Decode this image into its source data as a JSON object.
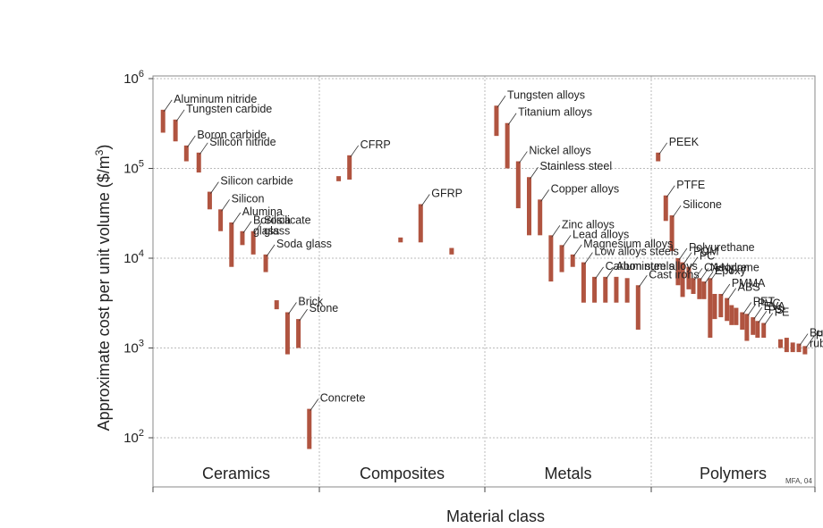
{
  "chart_data": {
    "type": "bar",
    "xlabel": "Material class",
    "ylabel_main": "Approximate cost per unit volume ($/m",
    "ylabel_sup": "3",
    "ylabel_tail": ")",
    "yscale": "log",
    "ylim": [
      50,
      1000000
    ],
    "y_ticks": [
      {
        "value": 100,
        "base": "10",
        "exp": "2"
      },
      {
        "value": 1000,
        "base": "10",
        "exp": "3"
      },
      {
        "value": 10000,
        "base": "10",
        "exp": "4"
      },
      {
        "value": 100000,
        "base": "10",
        "exp": "5"
      },
      {
        "value": 1000000,
        "base": "10",
        "exp": "6"
      }
    ],
    "grid": true,
    "bar_color": "#b05440",
    "credit": "MFA, 04",
    "categories": [
      "Ceramics",
      "Composites",
      "Metals",
      "Polymers"
    ],
    "materials": [
      {
        "label": [
          "Aluminum nitride"
        ],
        "cat": 0,
        "pos": 0.03,
        "low": 250000,
        "high": 450000
      },
      {
        "label": [
          "Tungsten carbide"
        ],
        "cat": 0,
        "pos": 0.11,
        "low": 200000,
        "high": 350000
      },
      {
        "label": [
          "Boron carbide"
        ],
        "cat": 0,
        "pos": 0.18,
        "low": 120000,
        "high": 180000
      },
      {
        "label": [
          "Silicon nitride"
        ],
        "cat": 0,
        "pos": 0.26,
        "low": 90000,
        "high": 150000
      },
      {
        "label": [
          "Silicon carbide"
        ],
        "cat": 0,
        "pos": 0.33,
        "low": 35000,
        "high": 55000
      },
      {
        "label": [
          "Silicon"
        ],
        "cat": 0,
        "pos": 0.4,
        "low": 20000,
        "high": 35000
      },
      {
        "label": [
          "Alumina"
        ],
        "cat": 0,
        "pos": 0.47,
        "low": 8000,
        "high": 25000
      },
      {
        "label": [
          "Borosilicate",
          "glass"
        ],
        "cat": 0,
        "pos": 0.54,
        "low": 14000,
        "high": 20000
      },
      {
        "label": [
          "Silica",
          "glass"
        ],
        "cat": 0,
        "pos": 0.61,
        "low": 11000,
        "high": 20000
      },
      {
        "label": [
          "Soda glass"
        ],
        "cat": 0,
        "pos": 0.69,
        "low": 7000,
        "high": 11000
      },
      {
        "label": [
          ""
        ],
        "cat": 0,
        "pos": 0.76,
        "low": 2700,
        "high": 3400
      },
      {
        "label": [
          "Brick"
        ],
        "cat": 0,
        "pos": 0.83,
        "low": 850,
        "high": 2500
      },
      {
        "label": [
          "Stone"
        ],
        "cat": 0,
        "pos": 0.9,
        "low": 1000,
        "high": 2100
      },
      {
        "label": [
          "Concrete"
        ],
        "cat": 0,
        "pos": 0.97,
        "low": 75,
        "high": 210
      },
      {
        "label": [
          "CFRP"
        ],
        "cat": 1,
        "pos": 0.16,
        "low": 75000,
        "high": 140000
      },
      {
        "label": [
          ""
        ],
        "cat": 1,
        "pos": 0.09,
        "low": 72000,
        "high": 82000
      },
      {
        "label": [
          "GFRP"
        ],
        "cat": 1,
        "pos": 0.62,
        "low": 15000,
        "high": 40000
      },
      {
        "label": [
          ""
        ],
        "cat": 1,
        "pos": 0.49,
        "low": 15000,
        "high": 17000
      },
      {
        "label": [
          ""
        ],
        "cat": 1,
        "pos": 0.82,
        "low": 11000,
        "high": 13000
      },
      {
        "label": [
          "Tungsten alloys"
        ],
        "cat": 2,
        "pos": 0.04,
        "low": 230000,
        "high": 500000
      },
      {
        "label": [
          "Titanium alloys"
        ],
        "cat": 2,
        "pos": 0.11,
        "low": 100000,
        "high": 320000
      },
      {
        "label": [
          "Nickel alloys"
        ],
        "cat": 2,
        "pos": 0.18,
        "low": 36000,
        "high": 120000
      },
      {
        "label": [
          "Stainless steel"
        ],
        "cat": 2,
        "pos": 0.25,
        "low": 18000,
        "high": 80000
      },
      {
        "label": [
          "Copper alloys"
        ],
        "cat": 2,
        "pos": 0.32,
        "low": 18000,
        "high": 45000
      },
      {
        "label": [
          "Zinc alloys"
        ],
        "cat": 2,
        "pos": 0.39,
        "low": 5500,
        "high": 18000
      },
      {
        "label": [
          "Lead alloys"
        ],
        "cat": 2,
        "pos": 0.46,
        "low": 7000,
        "high": 14000
      },
      {
        "label": [
          "Magnesium alloys"
        ],
        "cat": 2,
        "pos": 0.53,
        "low": 8000,
        "high": 11000
      },
      {
        "label": [
          "Low alloys steels"
        ],
        "cat": 2,
        "pos": 0.6,
        "low": 3200,
        "high": 9000
      },
      {
        "label": [
          "Carbon steels"
        ],
        "cat": 2,
        "pos": 0.67,
        "low": 3200,
        "high": 6200
      },
      {
        "label": [
          "Aluminum alloys"
        ],
        "cat": 2,
        "pos": 0.74,
        "low": 3200,
        "high": 6200
      },
      {
        "label": [
          ""
        ],
        "cat": 2,
        "pos": 0.81,
        "low": 3200,
        "high": 6200
      },
      {
        "label": [
          ""
        ],
        "cat": 2,
        "pos": 0.88,
        "low": 3200,
        "high": 6000
      },
      {
        "label": [
          "Cast irons"
        ],
        "cat": 2,
        "pos": 0.95,
        "low": 1600,
        "high": 5000
      },
      {
        "label": [
          "PEEK"
        ],
        "cat": 3,
        "pos": 0.01,
        "low": 120000,
        "high": 150000
      },
      {
        "label": [
          "PTFE"
        ],
        "cat": 3,
        "pos": 0.06,
        "low": 26000,
        "high": 50000
      },
      {
        "label": [
          "Silicone"
        ],
        "cat": 3,
        "pos": 0.1,
        "low": 12000,
        "high": 30000
      },
      {
        "label": [
          "Polyurethane"
        ],
        "cat": 3,
        "pos": 0.14,
        "low": 5000,
        "high": 10000
      },
      {
        "label": [
          "POM"
        ],
        "cat": 3,
        "pos": 0.17,
        "low": 3700,
        "high": 9000
      },
      {
        "label": [
          "PC"
        ],
        "cat": 3,
        "pos": 0.21,
        "low": 4500,
        "high": 8000
      },
      {
        "label": [
          "CA"
        ],
        "cat": 3,
        "pos": 0.24,
        "low": 4000,
        "high": 6000
      },
      {
        "label": [
          "Neoprene"
        ],
        "cat": 3,
        "pos": 0.28,
        "low": 3500,
        "high": 6000
      },
      {
        "label": [
          "Epoxy"
        ],
        "cat": 3,
        "pos": 0.31,
        "low": 3500,
        "high": 5500
      },
      {
        "label": [
          "Nylon"
        ],
        "cat": 3,
        "pos": 0.35,
        "low": 1300,
        "high": 6000
      },
      {
        "label": [
          ""
        ],
        "cat": 3,
        "pos": 0.38,
        "low": 2100,
        "high": 4000
      },
      {
        "label": [
          "PMMA"
        ],
        "cat": 3,
        "pos": 0.42,
        "low": 2200,
        "high": 4000
      },
      {
        "label": [
          "ABS"
        ],
        "cat": 3,
        "pos": 0.46,
        "low": 2000,
        "high": 3600
      },
      {
        "label": [
          ""
        ],
        "cat": 3,
        "pos": 0.49,
        "low": 1800,
        "high": 3000
      },
      {
        "label": [
          ""
        ],
        "cat": 3,
        "pos": 0.52,
        "low": 1800,
        "high": 2800
      },
      {
        "label": [
          "PET"
        ],
        "cat": 3,
        "pos": 0.56,
        "low": 1600,
        "high": 2500
      },
      {
        "label": [
          "PVC"
        ],
        "cat": 3,
        "pos": 0.59,
        "low": 1200,
        "high": 2400
      },
      {
        "label": [
          "EVA"
        ],
        "cat": 3,
        "pos": 0.63,
        "low": 1400,
        "high": 2200
      },
      {
        "label": [
          "PS"
        ],
        "cat": 3,
        "pos": 0.66,
        "low": 1300,
        "high": 2000
      },
      {
        "label": [
          "PE"
        ],
        "cat": 3,
        "pos": 0.7,
        "low": 1300,
        "high": 1900
      },
      {
        "label": [
          ""
        ],
        "cat": 3,
        "pos": 0.81,
        "low": 1000,
        "high": 1250
      },
      {
        "label": [
          ""
        ],
        "cat": 3,
        "pos": 0.85,
        "low": 900,
        "high": 1300
      },
      {
        "label": [
          ""
        ],
        "cat": 3,
        "pos": 0.89,
        "low": 900,
        "high": 1150
      },
      {
        "label": [
          "Butyl",
          "rubber"
        ],
        "cat": 3,
        "pos": 0.93,
        "low": 900,
        "high": 1120
      },
      {
        "label": [
          "PP"
        ],
        "cat": 3,
        "pos": 0.97,
        "low": 850,
        "high": 1050
      }
    ]
  }
}
